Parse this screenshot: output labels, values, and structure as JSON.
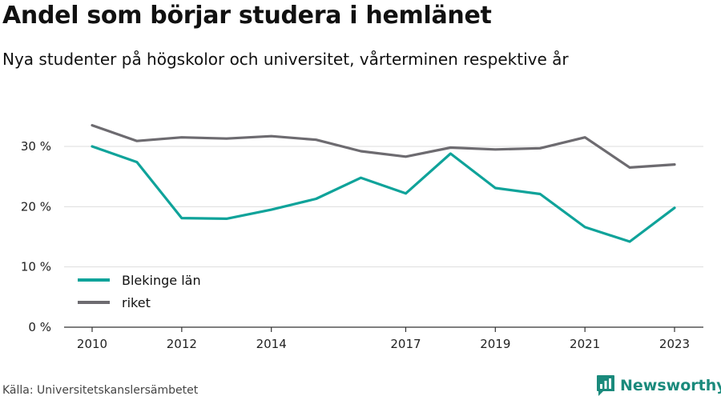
{
  "title": "Andel som börjar studera i hemlänet",
  "subtitle": "Nya studenter på högskolor och universitet, vårterminen respektive år",
  "source": "Källa: Universitetskanslersämbetet",
  "brand": {
    "name": "Newsworthy",
    "icon": "newsworthy-logo-icon",
    "color": "#1a8a7c"
  },
  "chart_data": {
    "type": "line",
    "x": [
      2010,
      2011,
      2012,
      2013,
      2014,
      2015,
      2016,
      2017,
      2018,
      2019,
      2020,
      2021,
      2022,
      2023
    ],
    "x_ticks": [
      "2010",
      "2012",
      "2014",
      "2017",
      "2019",
      "2021",
      "2023"
    ],
    "y_ticks": [
      "0 %",
      "10 %",
      "20 %",
      "30 %"
    ],
    "ylim": [
      0,
      35
    ],
    "grid": true,
    "legend_position": "bottom-left",
    "series": [
      {
        "name": "Blekinge län",
        "color": "#0fa39a",
        "values": [
          30.0,
          27.4,
          18.1,
          18.0,
          19.5,
          21.3,
          24.8,
          22.2,
          28.8,
          23.1,
          22.1,
          16.6,
          14.2,
          19.8
        ]
      },
      {
        "name": "riket",
        "color": "#6d6b70",
        "values": [
          33.5,
          30.9,
          31.5,
          31.3,
          31.7,
          31.1,
          29.2,
          28.3,
          29.8,
          29.5,
          29.7,
          31.5,
          26.5,
          27.0
        ]
      }
    ]
  }
}
